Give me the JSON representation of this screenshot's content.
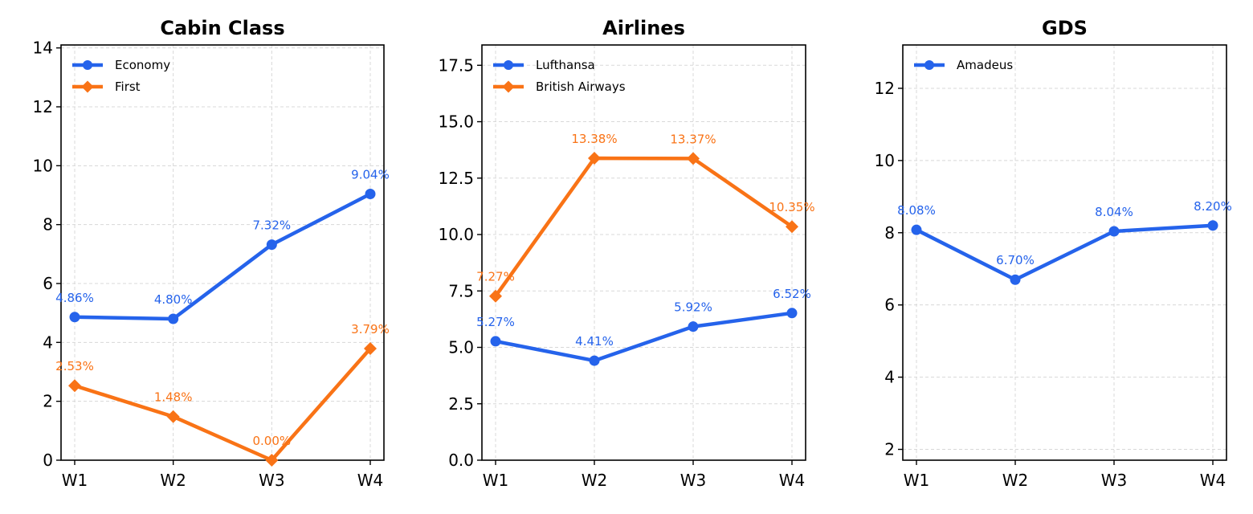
{
  "chart_data": [
    {
      "type": "line",
      "title": "Cabin Class",
      "categories": [
        "W1",
        "W2",
        "W3",
        "W4"
      ],
      "ylim": [
        0,
        14.1
      ],
      "yticks": [
        0,
        2,
        4,
        6,
        8,
        10,
        12,
        14
      ],
      "ytick_labels": [
        "0",
        "2",
        "4",
        "6",
        "8",
        "10",
        "12",
        "14"
      ],
      "grid": true,
      "legend_position": "top-left",
      "series": [
        {
          "name": "Economy",
          "values": [
            4.86,
            4.8,
            7.32,
            9.04
          ],
          "labels": [
            "4.86%",
            "4.80%",
            "7.32%",
            "9.04%"
          ],
          "color": "#2563eb",
          "marker": "circle"
        },
        {
          "name": "First",
          "values": [
            2.53,
            1.48,
            0.0,
            3.79
          ],
          "labels": [
            "2.53%",
            "1.48%",
            "0.00%",
            "3.79%"
          ],
          "color": "#f97316",
          "marker": "diamond"
        }
      ]
    },
    {
      "type": "line",
      "title": "Airlines",
      "categories": [
        "W1",
        "W2",
        "W3",
        "W4"
      ],
      "ylim": [
        0,
        18.4
      ],
      "yticks": [
        0,
        2.5,
        5,
        7.5,
        10,
        12.5,
        15,
        17.5
      ],
      "ytick_labels": [
        "0.0",
        "2.5",
        "5.0",
        "7.5",
        "10.0",
        "12.5",
        "15.0",
        "17.5"
      ],
      "grid": true,
      "legend_position": "top-left",
      "series": [
        {
          "name": "Lufthansa",
          "values": [
            5.27,
            4.41,
            5.92,
            6.52
          ],
          "labels": [
            "5.27%",
            "4.41%",
            "5.92%",
            "6.52%"
          ],
          "color": "#2563eb",
          "marker": "circle"
        },
        {
          "name": "British Airways",
          "values": [
            7.27,
            13.38,
            13.37,
            10.35
          ],
          "labels": [
            "7.27%",
            "13.38%",
            "13.37%",
            "10.35%"
          ],
          "color": "#f97316",
          "marker": "diamond"
        }
      ]
    },
    {
      "type": "line",
      "title": "GDS",
      "categories": [
        "W1",
        "W2",
        "W3",
        "W4"
      ],
      "ylim": [
        1.7,
        13.2
      ],
      "yticks": [
        2,
        4,
        6,
        8,
        10,
        12
      ],
      "ytick_labels": [
        "2",
        "4",
        "6",
        "8",
        "10",
        "12"
      ],
      "grid": true,
      "legend_position": "top-left",
      "series": [
        {
          "name": "Amadeus",
          "values": [
            8.08,
            6.7,
            8.04,
            8.2
          ],
          "labels": [
            "8.08%",
            "6.70%",
            "8.04%",
            "8.20%"
          ],
          "color": "#2563eb",
          "marker": "circle"
        }
      ]
    }
  ]
}
